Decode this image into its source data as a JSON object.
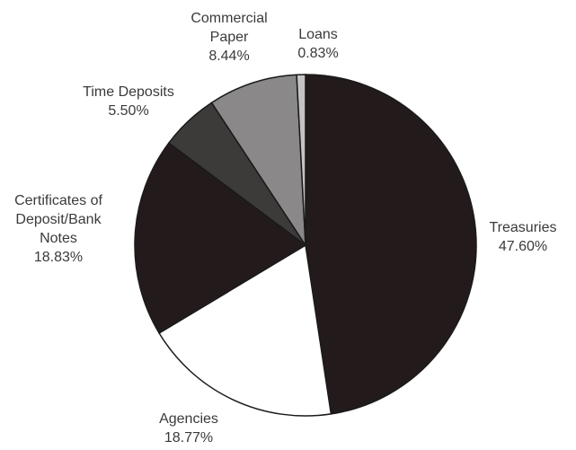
{
  "chart_data": {
    "type": "pie",
    "title": "",
    "slices": [
      {
        "name": "Treasuries",
        "value": 47.6,
        "label_lines": [
          "Treasuries"
        ],
        "pct_label": "47.60%",
        "color": "#231b1b"
      },
      {
        "name": "Agencies",
        "value": 18.77,
        "label_lines": [
          "Agencies"
        ],
        "pct_label": "18.77%",
        "color": "#ffffff"
      },
      {
        "name": "Certificates of Deposit/Bank Notes",
        "value": 18.83,
        "label_lines": [
          "Certificates of",
          "Deposit/Bank",
          "Notes"
        ],
        "pct_label": "18.83%",
        "color": "#231b1b"
      },
      {
        "name": "Time Deposits",
        "value": 5.5,
        "label_lines": [
          "Time Deposits"
        ],
        "pct_label": "5.50%",
        "color": "#3d3a3a"
      },
      {
        "name": "Commercial Paper",
        "value": 8.44,
        "label_lines": [
          "Commercial",
          "Paper"
        ],
        "pct_label": "8.44%",
        "color": "#8a8888"
      },
      {
        "name": "Loans",
        "value": 0.83,
        "label_lines": [
          "Loans"
        ],
        "pct_label": "0.83%",
        "color": "#c4c4c4"
      }
    ],
    "start_angle": "12 o'clock",
    "direction": "clockwise",
    "legend": "none",
    "stroke_color": "#1a1a1a"
  }
}
